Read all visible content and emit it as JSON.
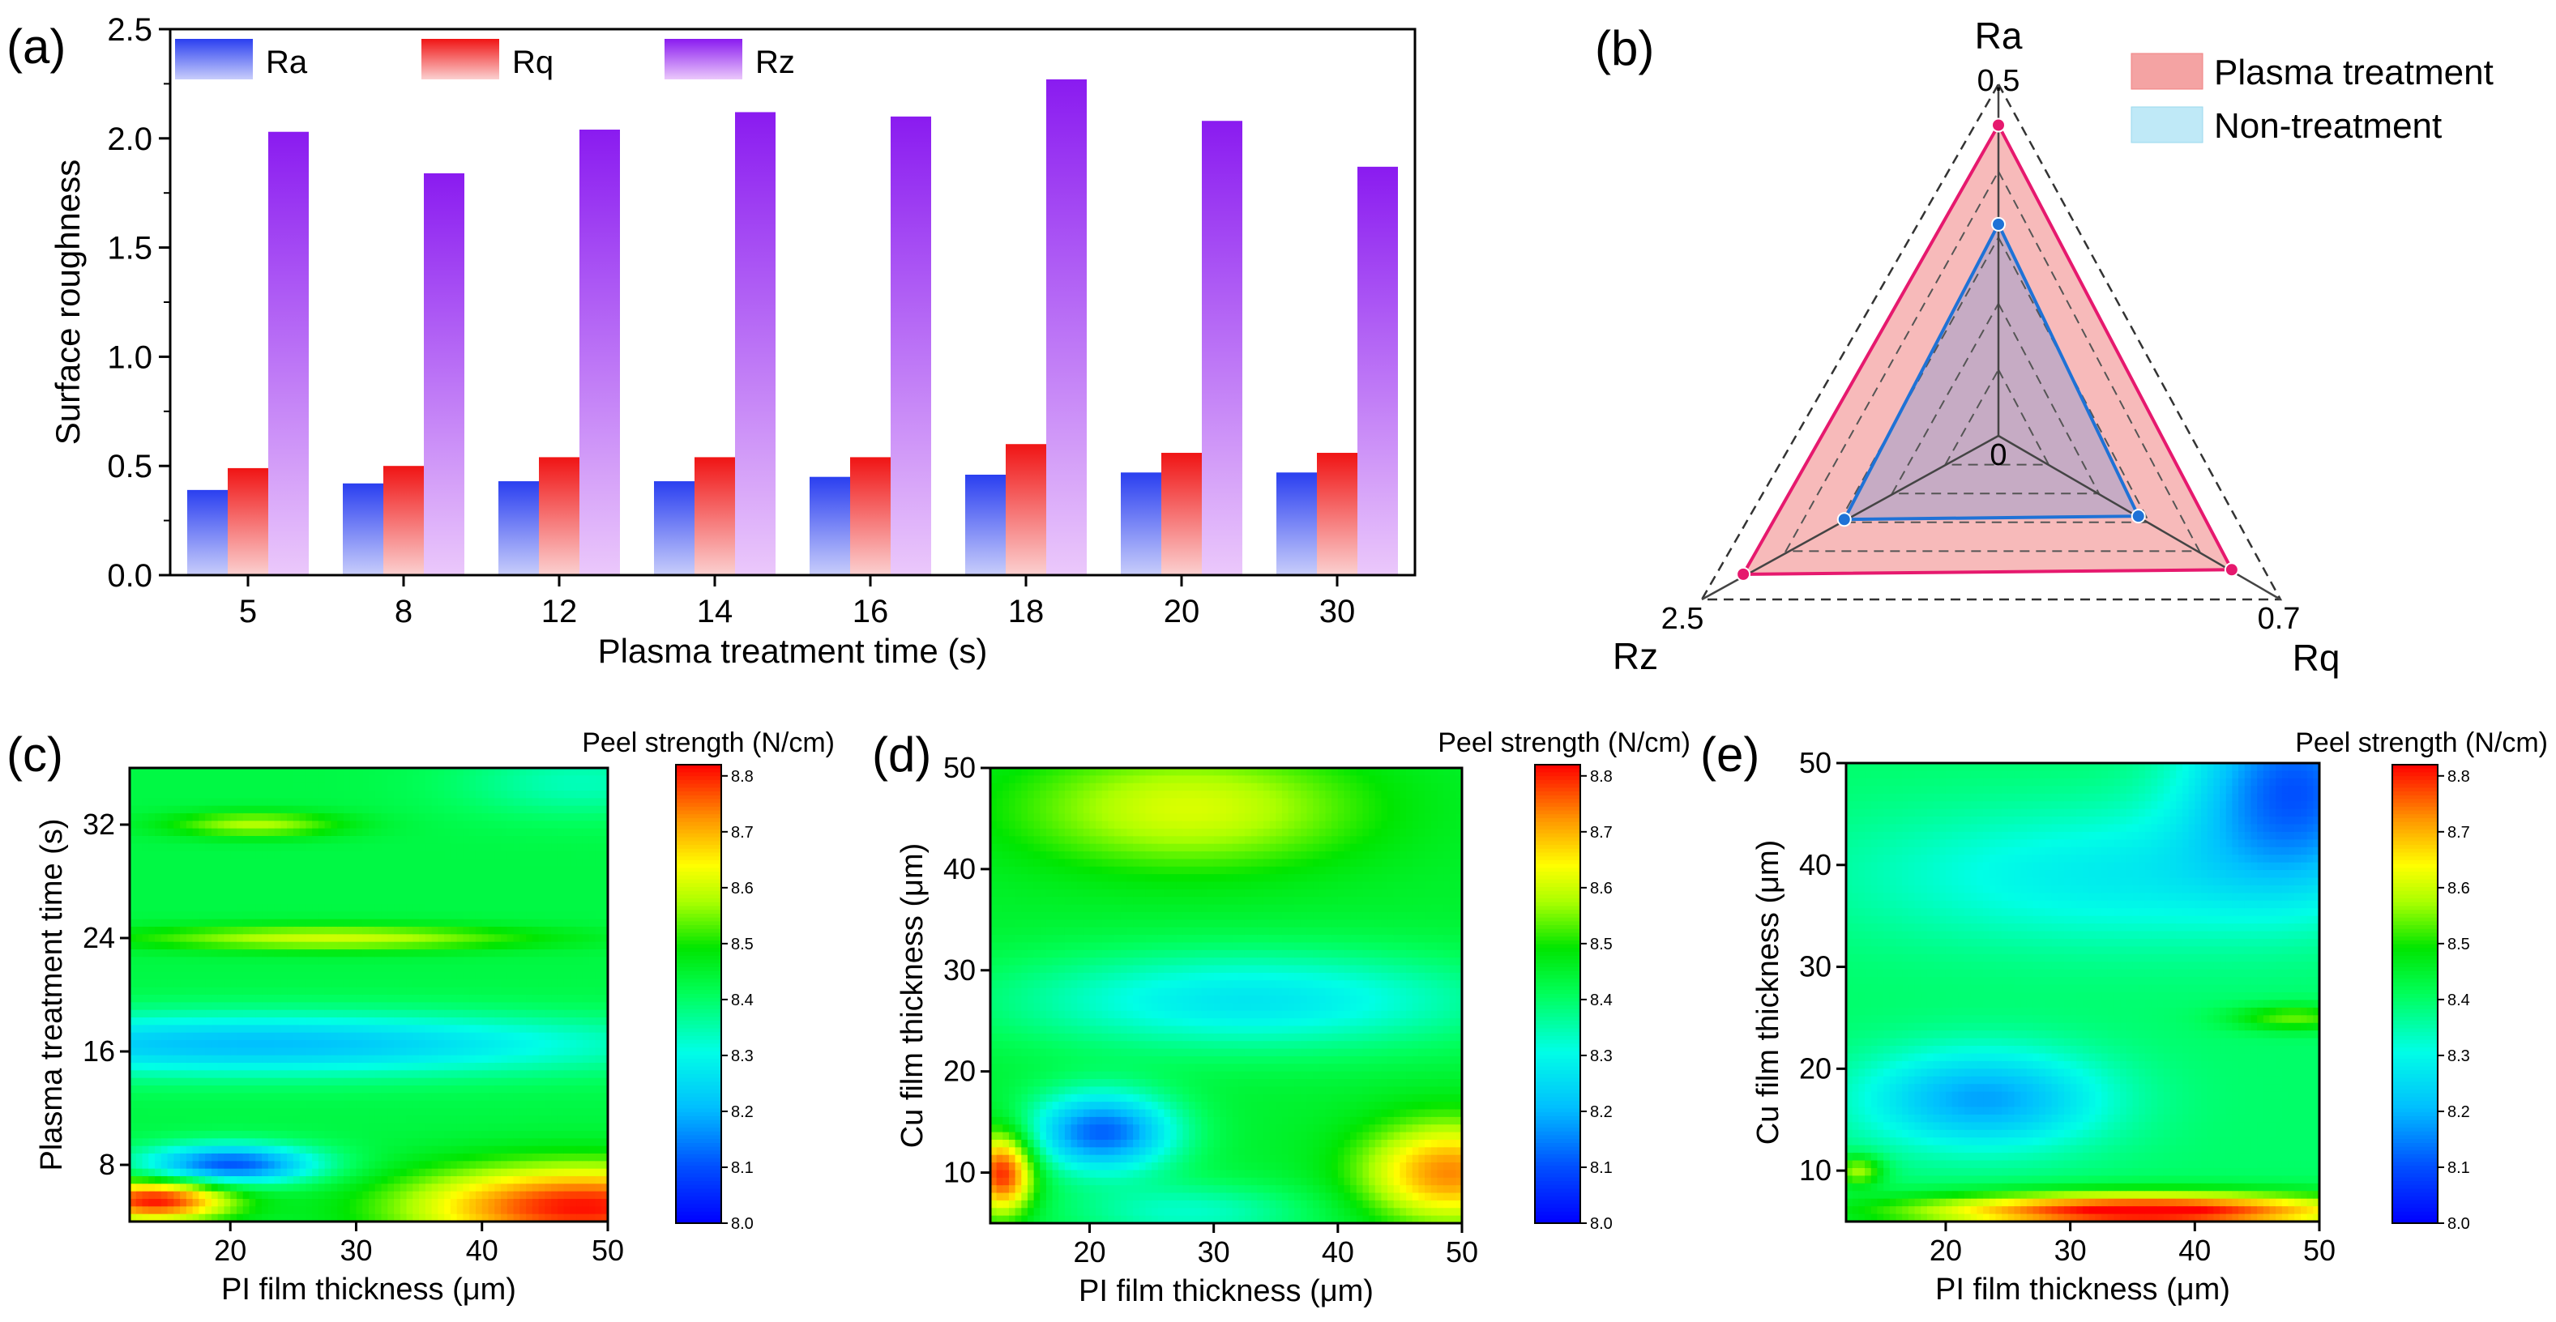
{
  "panels": {
    "a": {
      "letter": "(a)",
      "chart_data": {
        "type": "bar",
        "xlabel": "Plasma treatment time (s)",
        "ylabel": "Surface roughness",
        "categories": [
          "5",
          "8",
          "12",
          "14",
          "16",
          "18",
          "20",
          "30"
        ],
        "ylim": [
          0,
          2.5
        ],
        "yticks": [
          "0.0",
          "0.5",
          "1.0",
          "1.5",
          "2.0",
          "2.5"
        ],
        "series": [
          {
            "name": "Ra",
            "values": [
              0.39,
              0.42,
              0.43,
              0.43,
              0.45,
              0.46,
              0.47,
              0.47
            ],
            "color_top": "#2a3ff0",
            "color_bottom": "#c8cdfb"
          },
          {
            "name": "Rq",
            "values": [
              0.49,
              0.5,
              0.54,
              0.54,
              0.54,
              0.6,
              0.56,
              0.56
            ],
            "color_top": "#f01414",
            "color_bottom": "#fbd0d0"
          },
          {
            "name": "Rz",
            "values": [
              2.03,
              1.84,
              2.04,
              2.12,
              2.1,
              2.27,
              2.08,
              1.87
            ],
            "color_top": "#8a1bf0",
            "color_bottom": "#ebc8fb"
          }
        ],
        "legend_position": "top"
      }
    },
    "b": {
      "letter": "(b)",
      "chart_data": {
        "type": "radar",
        "axes": [
          {
            "name": "Ra",
            "max": 0.5,
            "max_label": "0.5"
          },
          {
            "name": "Rq",
            "max": 0.7,
            "max_label": "0.7"
          },
          {
            "name": "Rz",
            "max": 2.5,
            "max_label": "2.5"
          }
        ],
        "center_label": "0",
        "series": [
          {
            "name": "Plasma treatment",
            "values": [
              0.47,
              0.65,
              2.4
            ],
            "line_color": "#e6196e",
            "fill_color": "#f4a3a3"
          },
          {
            "name": "Non-treatment",
            "values": [
              0.32,
              0.39,
              1.45
            ],
            "line_color": "#1f72d6",
            "fill_color": "#bfe9f7"
          }
        ],
        "legend_position": "top-right"
      }
    },
    "c": {
      "letter": "(c)",
      "chart_data": {
        "type": "heatmap",
        "xlabel": "PI film thickness (μm)",
        "ylabel": "Plasma treatment time (s)",
        "xticks": [
          "20",
          "30",
          "40",
          "50"
        ],
        "yticks": [
          "8",
          "16",
          "24",
          "32"
        ],
        "xlim": [
          12,
          50
        ],
        "ylim": [
          4,
          36
        ],
        "colorbar_title": "Peel strength (N/cm)",
        "colorbar_ticks": [
          "8.0",
          "8.1",
          "8.2",
          "8.3",
          "8.4",
          "8.5",
          "8.6",
          "8.7",
          "8.8"
        ],
        "colorbar_range": [
          8.0,
          8.82
        ]
      }
    },
    "d": {
      "letter": "(d)",
      "chart_data": {
        "type": "heatmap",
        "xlabel": "PI film thickness (μm)",
        "ylabel": "Cu film thickness (μm)",
        "xticks": [
          "20",
          "30",
          "40",
          "50"
        ],
        "yticks": [
          "10",
          "20",
          "30",
          "40",
          "50"
        ],
        "xlim": [
          12,
          50
        ],
        "ylim": [
          5,
          50
        ],
        "colorbar_title": "Peel strength (N/cm)",
        "colorbar_ticks": [
          "8.0",
          "8.1",
          "8.2",
          "8.3",
          "8.4",
          "8.5",
          "8.6",
          "8.7",
          "8.8"
        ],
        "colorbar_range": [
          8.0,
          8.82
        ]
      }
    },
    "e": {
      "letter": "(e)",
      "chart_data": {
        "type": "heatmap",
        "xlabel": "PI film thickness (μm)",
        "ylabel": "Cu film thickness (μm)",
        "xticks": [
          "20",
          "30",
          "40",
          "50"
        ],
        "yticks": [
          "10",
          "20",
          "30",
          "40",
          "50"
        ],
        "xlim": [
          12,
          50
        ],
        "ylim": [
          5,
          50
        ],
        "colorbar_title": "Peel strength (N/cm)",
        "colorbar_ticks": [
          "8.0",
          "8.1",
          "8.2",
          "8.3",
          "8.4",
          "8.5",
          "8.6",
          "8.7",
          "8.8"
        ],
        "colorbar_range": [
          8.0,
          8.82
        ]
      }
    }
  }
}
